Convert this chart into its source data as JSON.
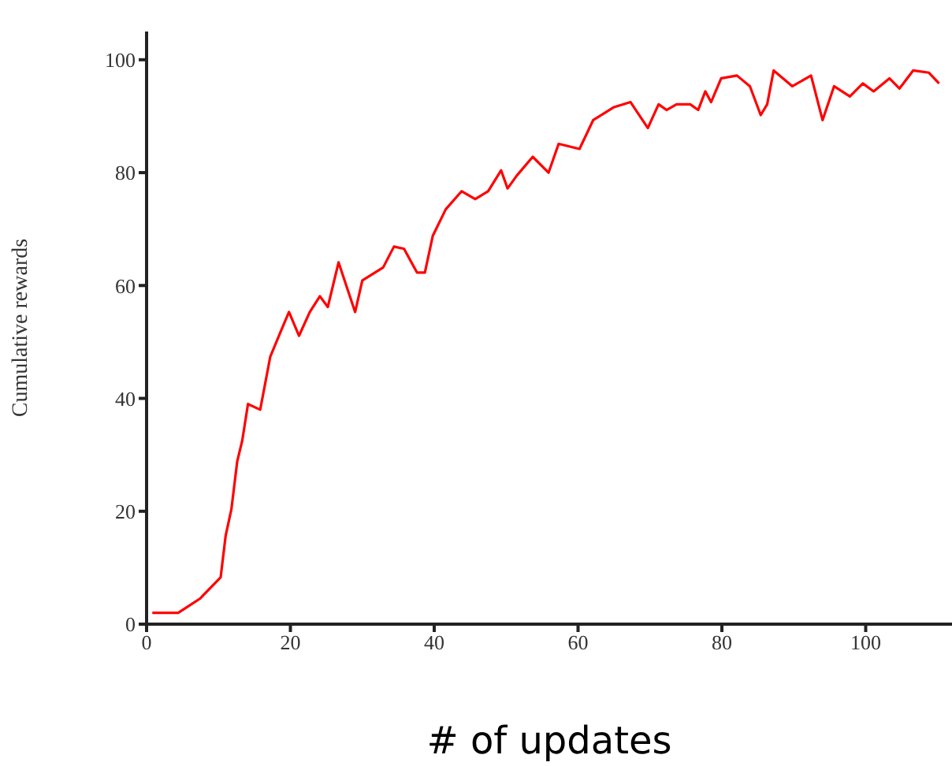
{
  "chart_data": {
    "type": "line",
    "xlabel": "# of updates",
    "ylabel": "Cumulative rewards",
    "x": [
      0.8,
      4.4,
      7.4,
      10.3,
      11,
      11.8,
      12.6,
      13.3,
      14.1,
      15.8,
      16.5,
      17.2,
      18.7,
      19.8,
      21.2,
      22.7,
      24.1,
      25.2,
      26.7,
      29,
      30,
      32.9,
      34.4,
      35.8,
      37.6,
      38.7,
      39.8,
      41.6,
      43.8,
      45.7,
      47.5,
      49.3,
      50.2,
      51.5,
      53.7,
      55.9,
      57.3,
      60.2,
      62.1,
      65,
      67.3,
      69.7,
      71.2,
      72.3,
      73.7,
      75.6,
      76.7,
      77.7,
      78.5,
      79.9,
      82.1,
      83.9,
      85.4,
      86.3,
      87.2,
      89.8,
      92.4,
      94,
      95.6,
      97.8,
      99.6,
      101.1,
      103.3,
      104.7,
      106.6,
      108.8,
      110.2
    ],
    "series": [
      {
        "color": "#ff0000",
        "values": [
          2,
          2,
          4.5,
          8.3,
          15.7,
          20.4,
          28.8,
          32.5,
          39,
          38,
          42.7,
          47.4,
          52,
          55.3,
          51.1,
          55.3,
          58.1,
          56.2,
          64.1,
          55.3,
          60.9,
          63.2,
          66.9,
          66.5,
          62.3,
          62.3,
          68.8,
          73.5,
          76.7,
          75.3,
          76.7,
          80.4,
          77.2,
          79.5,
          82.8,
          80,
          85.1,
          84.2,
          89.3,
          91.6,
          92.5,
          87.9,
          92.1,
          91.1,
          92.1,
          92.1,
          91.1,
          94.4,
          92.5,
          96.7,
          97.2,
          95.3,
          90.2,
          92.1,
          98.1,
          95.3,
          97.2,
          89.3,
          95.3,
          93.5,
          95.8,
          94.4,
          96.7,
          94.9,
          98.1,
          97.7,
          95.8
        ]
      }
    ],
    "xlim": [
      0,
      112
    ],
    "xticks": [
      0,
      20,
      40,
      60,
      80,
      100
    ],
    "ylim": [
      0,
      105
    ],
    "yticks": [
      0,
      20,
      40,
      60,
      80,
      100
    ]
  }
}
